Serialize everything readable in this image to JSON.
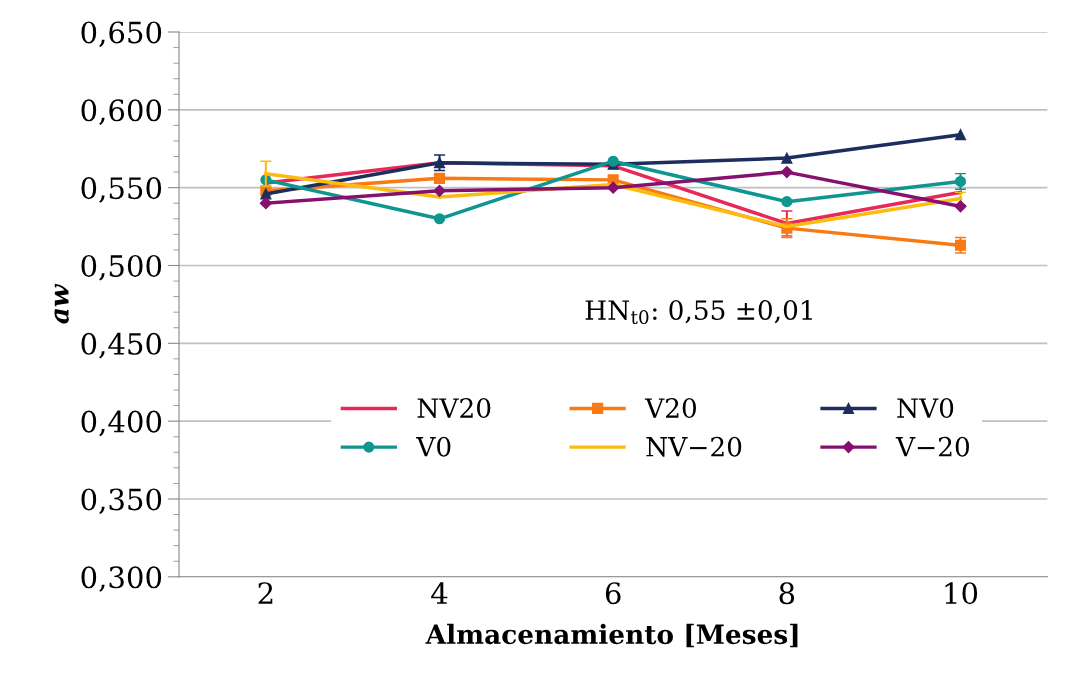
{
  "chart_data": {
    "type": "line",
    "xlabel": "Almacenamiento [Meses]",
    "ylabel": "aw",
    "categories": [
      "2",
      "4",
      "6",
      "8",
      "10"
    ],
    "ylim": [
      0.3,
      0.65
    ],
    "yticks": [
      {
        "value": 0.3,
        "label": "0,300"
      },
      {
        "value": 0.35,
        "label": "0,350"
      },
      {
        "value": 0.4,
        "label": "0,400"
      },
      {
        "value": 0.45,
        "label": "0,450"
      },
      {
        "value": 0.5,
        "label": "0,500"
      },
      {
        "value": 0.55,
        "label": "0,550"
      },
      {
        "value": 0.6,
        "label": "0,600"
      },
      {
        "value": 0.65,
        "label": "0,650"
      }
    ],
    "grid": "y",
    "legend": "center",
    "annotations": [
      "HN$_{t0}$: 0,55 ±0,01"
    ],
    "series": [
      {
        "name": "NV20",
        "color": "#e8285a",
        "marker": "none",
        "values": [
          0.553,
          0.566,
          0.564,
          0.527,
          0.547
        ],
        "errors": [
          null,
          null,
          null,
          0.008,
          null
        ]
      },
      {
        "name": "V20",
        "color": "#f97a12",
        "marker": "square",
        "values": [
          0.548,
          0.556,
          0.555,
          0.524,
          0.513
        ],
        "errors": [
          null,
          null,
          null,
          0.006,
          0.005
        ]
      },
      {
        "name": "NV0",
        "color": "#1c2e5e",
        "marker": "triangle",
        "values": [
          0.546,
          0.566,
          0.565,
          0.569,
          0.584
        ],
        "errors": [
          null,
          0.005,
          null,
          null,
          null
        ]
      },
      {
        "name": "V0",
        "color": "#0f9690",
        "marker": "circle",
        "values": [
          0.555,
          0.53,
          0.567,
          0.541,
          0.554
        ],
        "errors": [
          null,
          null,
          null,
          null,
          0.005
        ]
      },
      {
        "name": "NV−20",
        "color": "#fbbb10",
        "marker": "none",
        "values": [
          0.559,
          0.544,
          0.552,
          0.525,
          0.543
        ],
        "errors": [
          0.008,
          null,
          null,
          null,
          0.004
        ]
      },
      {
        "name": "V−20",
        "color": "#86106e",
        "marker": "diamond",
        "values": [
          0.54,
          0.548,
          0.55,
          0.56,
          0.538
        ],
        "errors": [
          null,
          null,
          null,
          null,
          null
        ]
      }
    ]
  }
}
